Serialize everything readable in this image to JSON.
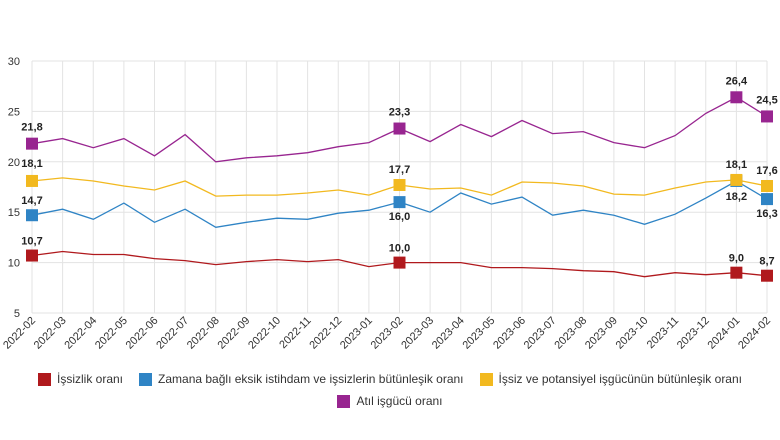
{
  "chart_data": {
    "type": "line",
    "x": [
      "2022-02",
      "2022-03",
      "2022-04",
      "2022-05",
      "2022-06",
      "2022-07",
      "2022-08",
      "2022-09",
      "2022-10",
      "2022-11",
      "2022-12",
      "2023-01",
      "2023-02",
      "2023-03",
      "2023-04",
      "2023-05",
      "2023-06",
      "2023-07",
      "2023-08",
      "2023-09",
      "2023-10",
      "2023-11",
      "2023-12",
      "2024-01",
      "2024-02"
    ],
    "ylim": [
      5,
      30
    ],
    "yticks": [
      5,
      10,
      15,
      20,
      25,
      30
    ],
    "grid": true,
    "legend_position": "bottom",
    "series": [
      {
        "name": "İşsizlik oranı",
        "color": "#b0191d",
        "values": [
          10.7,
          11.1,
          10.8,
          10.8,
          10.4,
          10.2,
          9.8,
          10.1,
          10.3,
          10.1,
          10.3,
          9.6,
          10.0,
          10.0,
          10.0,
          9.5,
          9.5,
          9.4,
          9.2,
          9.1,
          8.6,
          9.0,
          8.8,
          9.0,
          8.7
        ],
        "labels": [
          {
            "i": 0,
            "text": "10,7"
          },
          {
            "i": 12,
            "text": "10,0"
          },
          {
            "i": 23,
            "text": "9,0"
          },
          {
            "i": 24,
            "text": "8,7"
          }
        ]
      },
      {
        "name": "Zamana bağlı eksik istihdam ve işsizlerin bütünleşik oranı",
        "color": "#2f84c5",
        "values": [
          14.7,
          15.3,
          14.3,
          15.9,
          14.0,
          15.3,
          13.5,
          14.0,
          14.4,
          14.3,
          14.9,
          15.2,
          16.0,
          15.0,
          16.9,
          15.8,
          16.5,
          14.7,
          15.2,
          14.7,
          13.8,
          14.8,
          16.4,
          18.1,
          16.3
        ],
        "labels": [
          {
            "i": 0,
            "text": "14,7"
          },
          {
            "i": 12,
            "text": "16,0"
          },
          {
            "i": 23,
            "text": "18,1"
          },
          {
            "i": 24,
            "text": "16,3"
          }
        ]
      },
      {
        "name": "İşsiz ve potansiyel işgücünün bütünleşik oranı",
        "color": "#f2b91f",
        "values": [
          18.1,
          18.4,
          18.1,
          17.6,
          17.2,
          18.1,
          16.6,
          16.7,
          16.7,
          16.9,
          17.2,
          16.7,
          17.7,
          17.3,
          17.4,
          16.7,
          18.0,
          17.9,
          17.6,
          16.8,
          16.7,
          17.4,
          18.0,
          18.2,
          17.6
        ],
        "labels": [
          {
            "i": 0,
            "text": "18,1"
          },
          {
            "i": 12,
            "text": "17,7"
          },
          {
            "i": 23,
            "text": "18,2"
          },
          {
            "i": 24,
            "text": "17,6"
          }
        ]
      },
      {
        "name": "Atıl işgücü oranı",
        "color": "#982590",
        "values": [
          21.8,
          22.3,
          21.4,
          22.3,
          20.6,
          22.7,
          20.0,
          20.4,
          20.6,
          20.9,
          21.5,
          21.9,
          23.3,
          22.0,
          23.7,
          22.5,
          24.1,
          22.8,
          23.0,
          21.9,
          21.4,
          22.6,
          24.8,
          26.4,
          24.5
        ],
        "labels": [
          {
            "i": 0,
            "text": "21,8"
          },
          {
            "i": 12,
            "text": "23,3"
          },
          {
            "i": 23,
            "text": "26,4"
          },
          {
            "i": 24,
            "text": "24,5"
          }
        ]
      }
    ]
  }
}
